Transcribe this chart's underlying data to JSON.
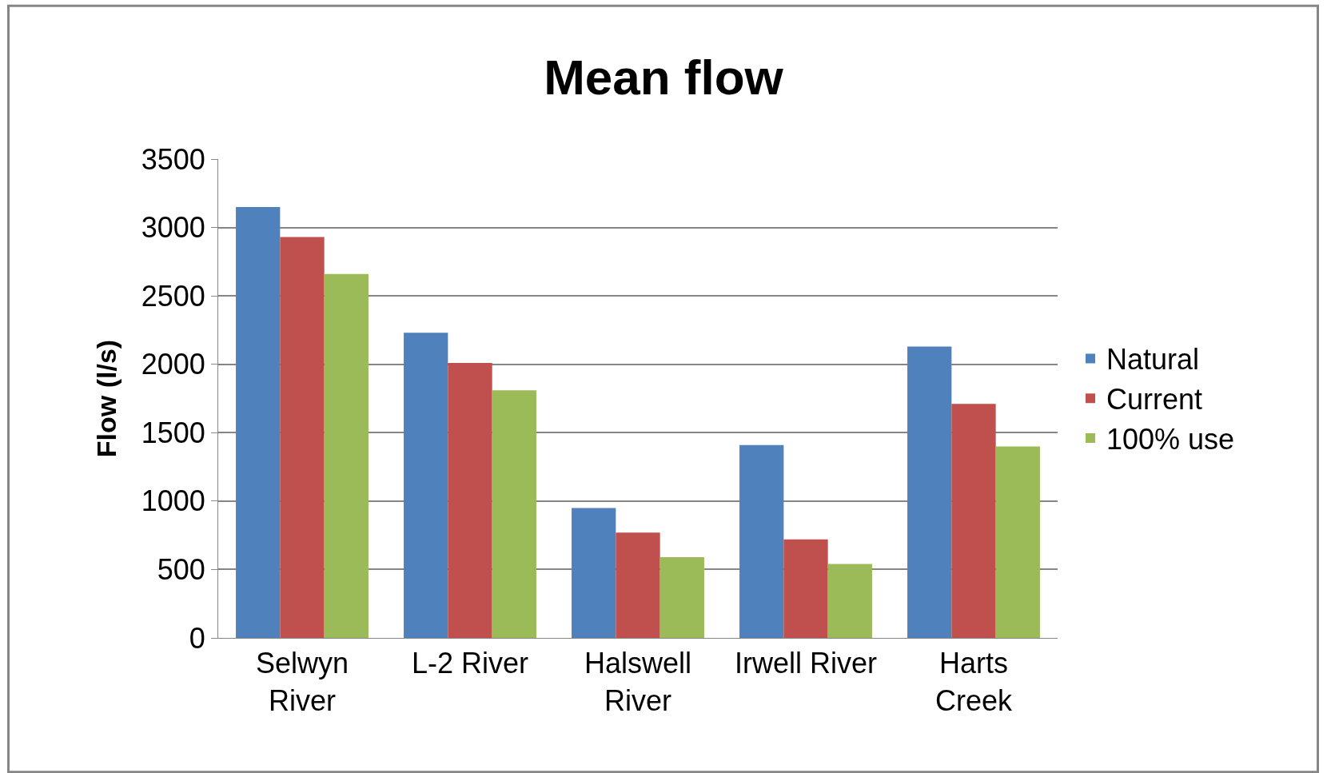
{
  "chart_data": {
    "type": "bar",
    "title": "Mean flow",
    "ylabel": "Flow (l/s)",
    "categories": [
      "Selwyn\nRiver",
      "L-2 River",
      "Halswell\nRiver",
      "Irwell River",
      "Harts\nCreek"
    ],
    "series": [
      {
        "name": "Natural",
        "color": "#4f81bd",
        "values": [
          3150,
          2230,
          950,
          1410,
          2130
        ]
      },
      {
        "name": "Current",
        "color": "#c0504d",
        "values": [
          2930,
          2010,
          770,
          720,
          1710
        ]
      },
      {
        "name": "100% use",
        "color": "#9bbb59",
        "values": [
          2660,
          1810,
          590,
          540,
          1400
        ]
      }
    ],
    "ylim": [
      0,
      3500
    ],
    "yticks": [
      0,
      500,
      1000,
      1500,
      2000,
      2500,
      3000,
      3500
    ],
    "grid": "y",
    "legend": "right"
  }
}
